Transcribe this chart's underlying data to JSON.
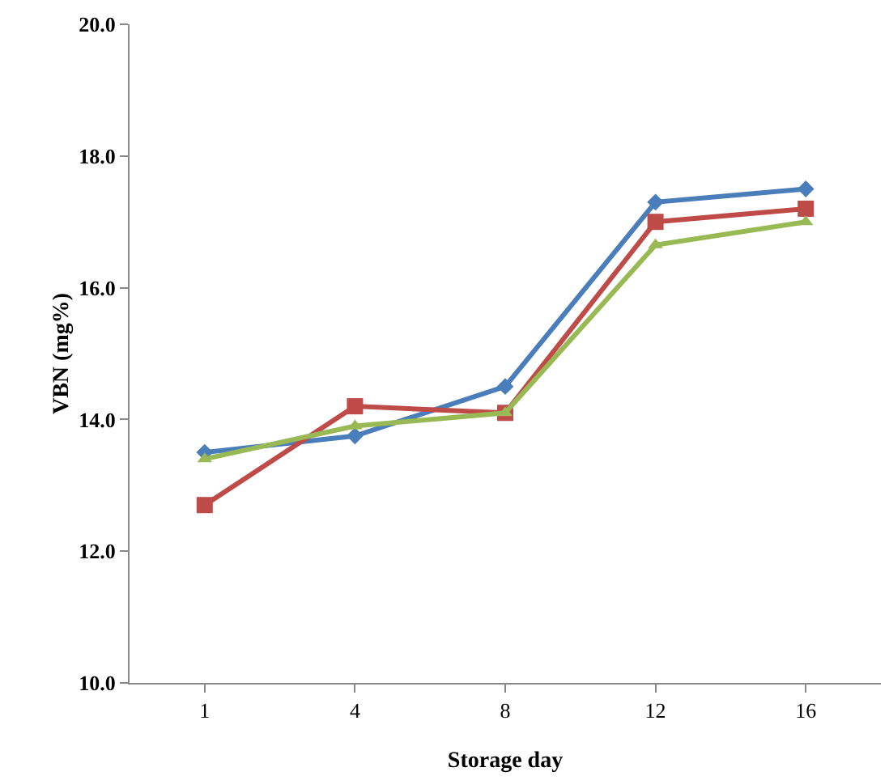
{
  "chart_data": {
    "type": "line",
    "xlabel": "Storage day",
    "ylabel": "VBN (mg%)",
    "categories": [
      "1",
      "4",
      "8",
      "12",
      "16"
    ],
    "series": [
      {
        "color": "#4a7ebb",
        "marker": "diamond",
        "values": [
          13.5,
          13.75,
          14.5,
          17.3,
          17.5
        ]
      },
      {
        "color": "#be4b48",
        "marker": "square",
        "values": [
          12.7,
          14.2,
          14.1,
          17.0,
          17.2
        ]
      },
      {
        "color": "#98b954",
        "marker": "triangle",
        "values": [
          13.4,
          13.9,
          14.1,
          16.65,
          17.0
        ]
      }
    ],
    "ylim": [
      10,
      20
    ],
    "yticks": [
      {
        "value": 10,
        "label": "10.0"
      },
      {
        "value": 12,
        "label": "12.0"
      },
      {
        "value": 14,
        "label": "14.0"
      },
      {
        "value": 16,
        "label": "16.0"
      },
      {
        "value": 18,
        "label": "18.0"
      },
      {
        "value": 20,
        "label": "20.0"
      }
    ],
    "grid": false,
    "line_style": "solid"
  }
}
